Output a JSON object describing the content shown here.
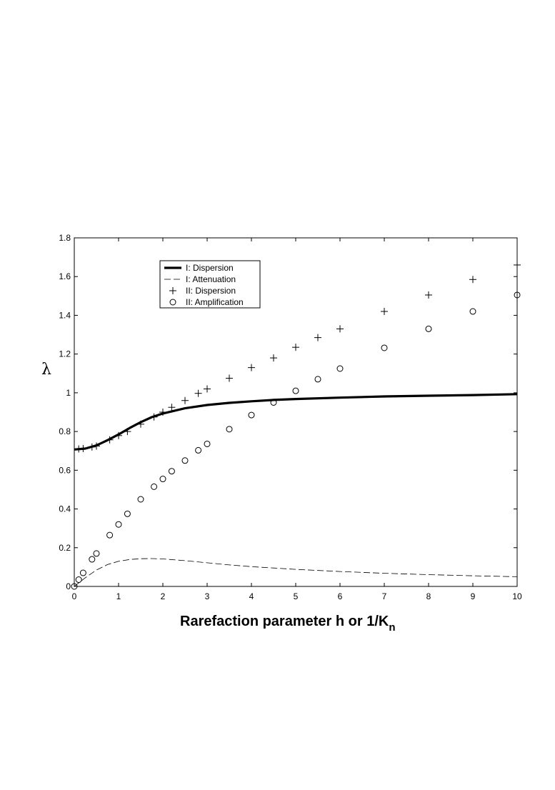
{
  "chart_data": {
    "type": "line",
    "title": "",
    "xlabel": "Rarefaction parameter h or 1/K",
    "xlabel_subscript": "n",
    "ylabel": "λ",
    "xlim": [
      0,
      10
    ],
    "ylim": [
      0,
      1.8
    ],
    "xticks": [
      0,
      1,
      2,
      3,
      4,
      5,
      6,
      7,
      8,
      9,
      10
    ],
    "yticks": [
      0,
      0.2,
      0.4,
      0.6,
      0.8,
      1,
      1.2,
      1.4,
      1.6,
      1.8
    ],
    "grid": false,
    "legend_position": "top-left",
    "series": [
      {
        "name": "I: Dispersion",
        "style": "thick-solid",
        "color": "#000000",
        "x": [
          0,
          0.25,
          0.5,
          0.75,
          1,
          1.25,
          1.5,
          1.75,
          2,
          2.5,
          3,
          3.5,
          4,
          4.5,
          5,
          6,
          7,
          8,
          9,
          10
        ],
        "y": [
          0.707,
          0.712,
          0.728,
          0.755,
          0.785,
          0.818,
          0.848,
          0.874,
          0.893,
          0.92,
          0.937,
          0.948,
          0.956,
          0.963,
          0.968,
          0.975,
          0.981,
          0.985,
          0.988,
          0.993
        ]
      },
      {
        "name": "I: Attenuation",
        "style": "dashed",
        "color": "#000000",
        "x": [
          0,
          0.25,
          0.5,
          0.75,
          1,
          1.25,
          1.5,
          1.75,
          2,
          2.5,
          3,
          3.5,
          4,
          4.5,
          5,
          6,
          7,
          8,
          9,
          10
        ],
        "y": [
          0,
          0.045,
          0.085,
          0.113,
          0.13,
          0.139,
          0.143,
          0.144,
          0.142,
          0.133,
          0.122,
          0.111,
          0.102,
          0.095,
          0.088,
          0.077,
          0.068,
          0.061,
          0.055,
          0.05
        ]
      },
      {
        "name": "II: Dispersion",
        "style": "plus-marker",
        "color": "#000000",
        "x": [
          0.1,
          0.2,
          0.4,
          0.5,
          0.8,
          1,
          1.2,
          1.5,
          1.8,
          2,
          2.2,
          2.5,
          2.8,
          3,
          3.5,
          4,
          4.5,
          5,
          5.5,
          6,
          7,
          8,
          9,
          10
        ],
        "y": [
          0.71,
          0.712,
          0.72,
          0.725,
          0.757,
          0.779,
          0.8,
          0.838,
          0.875,
          0.9,
          0.925,
          0.96,
          0.997,
          1.02,
          1.075,
          1.13,
          1.18,
          1.235,
          1.285,
          1.33,
          1.42,
          1.505,
          1.585,
          1.66
        ]
      },
      {
        "name": "II: Amplification",
        "style": "circle-marker",
        "color": "#000000",
        "x": [
          0,
          0.1,
          0.2,
          0.4,
          0.5,
          0.8,
          1,
          1.2,
          1.5,
          1.8,
          2,
          2.2,
          2.5,
          2.8,
          3,
          3.5,
          4,
          4.5,
          5,
          5.5,
          6,
          7,
          8,
          9,
          10
        ],
        "y": [
          0,
          0.035,
          0.07,
          0.14,
          0.17,
          0.265,
          0.32,
          0.375,
          0.45,
          0.515,
          0.555,
          0.595,
          0.65,
          0.703,
          0.736,
          0.812,
          0.885,
          0.95,
          1.01,
          1.07,
          1.125,
          1.232,
          1.33,
          1.42,
          1.505
        ]
      }
    ]
  }
}
